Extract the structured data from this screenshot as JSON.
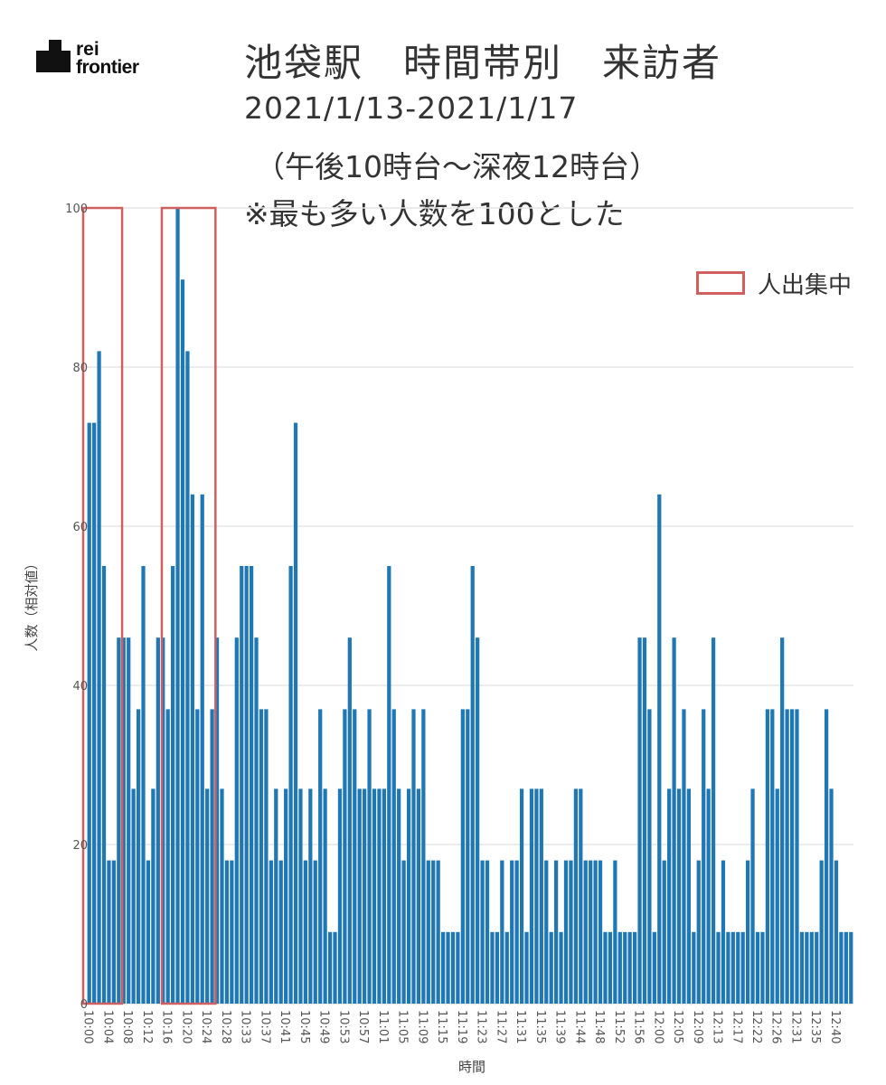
{
  "logo": {
    "line1": "rei",
    "line2": "frontier"
  },
  "title": {
    "line1": "池袋駅　時間帯別　来訪者",
    "line2": "2021/1/13-2021/1/17",
    "line3": "（午後10時台～深夜12時台）",
    "line4": "※最も多い人数を100とした"
  },
  "legend": {
    "label": "人出集中",
    "color": "#d06060"
  },
  "chart_data": {
    "type": "bar",
    "xlabel": "時間",
    "ylabel": "人数（相対値）",
    "ylim": [
      0,
      100
    ],
    "yticks": [
      0,
      20,
      40,
      60,
      80,
      100
    ],
    "grid": true,
    "bar_color": "#1f77b4",
    "xtick_labels": [
      "10:00",
      "10:04",
      "10:08",
      "10:12",
      "10:16",
      "10:20",
      "10:24",
      "10:28",
      "10:33",
      "10:37",
      "10:41",
      "10:45",
      "10:49",
      "10:53",
      "10:57",
      "11:01",
      "11:05",
      "11:09",
      "11:15",
      "11:19",
      "11:23",
      "11:27",
      "11:31",
      "11:35",
      "11:39",
      "11:44",
      "11:48",
      "11:52",
      "11:56",
      "12:00",
      "12:05",
      "12:09",
      "12:13",
      "12:17",
      "12:22",
      "12:26",
      "12:31",
      "12:35",
      "12:40"
    ],
    "values": [
      73,
      73,
      82,
      55,
      18,
      18,
      46,
      46,
      46,
      27,
      37,
      55,
      18,
      27,
      46,
      46,
      37,
      55,
      100,
      91,
      82,
      64,
      37,
      64,
      27,
      37,
      46,
      27,
      18,
      18,
      46,
      55,
      55,
      55,
      46,
      37,
      37,
      18,
      27,
      18,
      27,
      55,
      73,
      27,
      18,
      27,
      18,
      37,
      27,
      9,
      9,
      27,
      37,
      46,
      37,
      27,
      27,
      37,
      27,
      27,
      27,
      55,
      37,
      27,
      18,
      27,
      37,
      27,
      37,
      18,
      18,
      18,
      9,
      9,
      9,
      9,
      37,
      37,
      55,
      46,
      18,
      18,
      9,
      9,
      18,
      9,
      18,
      18,
      27,
      9,
      27,
      27,
      27,
      18,
      9,
      18,
      9,
      18,
      18,
      27,
      27,
      18,
      18,
      18,
      18,
      9,
      9,
      18,
      9,
      9,
      9,
      9,
      46,
      46,
      37,
      9,
      64,
      18,
      27,
      46,
      27,
      37,
      27,
      9,
      18,
      37,
      27,
      46,
      9,
      18,
      9,
      9,
      9,
      9,
      18,
      27,
      9,
      9,
      37,
      37,
      27,
      46,
      37,
      37,
      37,
      9,
      9,
      9,
      9,
      18,
      37,
      27,
      18,
      9,
      9,
      9
    ],
    "highlight_ranges": [
      [
        0,
        6
      ],
      [
        16,
        25
      ]
    ]
  }
}
